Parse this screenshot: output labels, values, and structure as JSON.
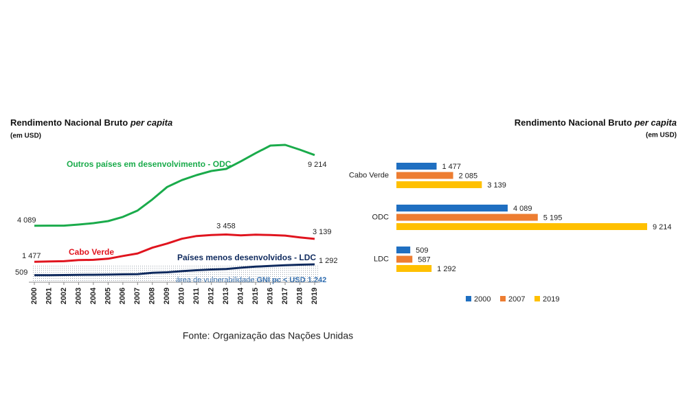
{
  "chart_data": [
    {
      "type": "line",
      "title": "Rendimento Nacional Bruto",
      "title_emphasis": "per capita",
      "subtitle": "(em USD)",
      "categories": [
        "2000",
        "2001",
        "2002",
        "2003",
        "2004",
        "2005",
        "2006",
        "2007",
        "2008",
        "2009",
        "2010",
        "2011",
        "2012",
        "2013",
        "2014",
        "2015",
        "2016",
        "2017",
        "2018",
        "2019"
      ],
      "series": [
        {
          "name": "Outros países em desenvolvimento - ODC",
          "color": "#1aab4b",
          "values": [
            4089,
            4100,
            4100,
            4180,
            4280,
            4430,
            4730,
            5195,
            6000,
            6900,
            7400,
            7760,
            8060,
            8210,
            8760,
            9350,
            9900,
            9950,
            9600,
            9214
          ],
          "value_labels": [
            "4 089",
            null,
            null,
            null,
            null,
            null,
            null,
            null,
            null,
            null,
            null,
            null,
            null,
            null,
            null,
            null,
            null,
            null,
            null,
            "9 214"
          ]
        },
        {
          "name": "Cabo Verde",
          "color": "#e0141e",
          "values": [
            1477,
            1500,
            1520,
            1600,
            1620,
            1700,
            1900,
            2085,
            2500,
            2800,
            3150,
            3350,
            3420,
            3458,
            3400,
            3450,
            3420,
            3380,
            3250,
            3139
          ],
          "value_labels": [
            "1 477",
            null,
            null,
            null,
            null,
            null,
            null,
            null,
            null,
            null,
            null,
            null,
            null,
            "3 458",
            null,
            null,
            null,
            null,
            null,
            "3 139"
          ]
        },
        {
          "name": "Países menos desenvolvidos - LDC",
          "color": "#0f2a5e",
          "values": [
            509,
            510,
            520,
            530,
            540,
            550,
            570,
            587,
            680,
            720,
            800,
            870,
            920,
            960,
            1050,
            1130,
            1180,
            1230,
            1270,
            1292
          ],
          "value_labels": [
            "509",
            null,
            null,
            null,
            null,
            null,
            null,
            null,
            null,
            null,
            null,
            null,
            null,
            null,
            null,
            null,
            null,
            null,
            null,
            "1 292"
          ]
        }
      ],
      "annotation": {
        "text": "área de vulnerabilidade",
        "emphasis": "GNI pc < USD 1.242",
        "value": 1242
      },
      "source": "Fonte: Organização das Nações Unidas"
    },
    {
      "type": "hbar",
      "title": "Rendimento Nacional Bruto",
      "title_emphasis": "per capita",
      "subtitle": "(em USD)",
      "categories": [
        "Cabo Verde",
        "ODC",
        "LDC"
      ],
      "series": [
        {
          "name": "2000",
          "color": "#1f6fc1",
          "values": [
            1477,
            4089,
            509
          ],
          "value_labels": [
            "1 477",
            "4 089",
            "509"
          ]
        },
        {
          "name": "2007",
          "color": "#ed7d31",
          "values": [
            2085,
            5195,
            587
          ],
          "value_labels": [
            "2 085",
            "5 195",
            "587"
          ]
        },
        {
          "name": "2019",
          "color": "#ffc000",
          "values": [
            3139,
            9214,
            1292
          ],
          "value_labels": [
            "3 139",
            "9 214",
            "1 292"
          ]
        }
      ],
      "legend": "bottom"
    }
  ]
}
